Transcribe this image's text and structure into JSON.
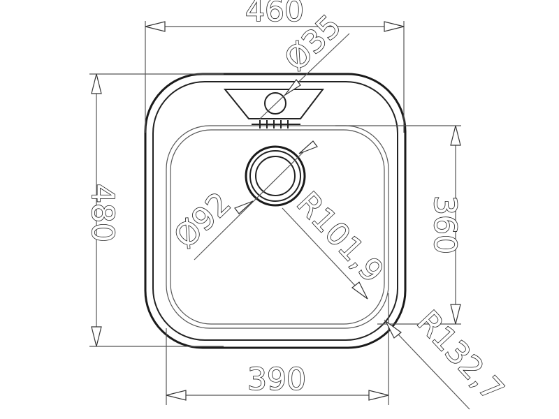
{
  "diagram": {
    "dimensions": {
      "overall_width": "460",
      "overall_height": "480",
      "inner_height": "360",
      "inner_width": "390",
      "tap_hole": "Ø35",
      "drain": "Ø92",
      "inner_radius": "R101,9",
      "outer_radius": "R132,7"
    },
    "colors": {
      "line": "#1a1a1a",
      "background": "#ffffff"
    }
  }
}
